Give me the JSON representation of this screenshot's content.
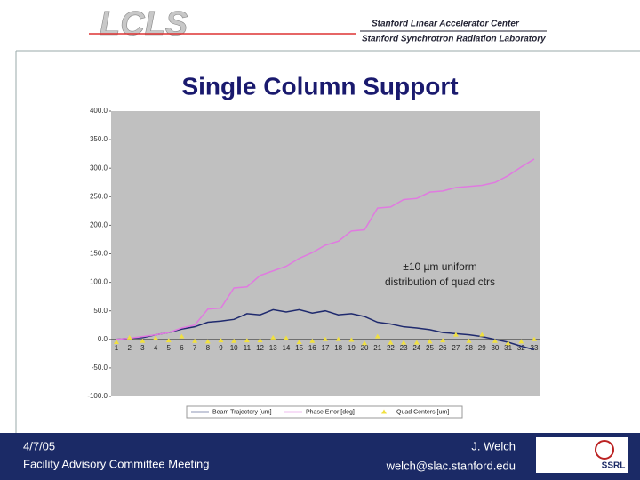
{
  "header": {
    "logo": "LCLS",
    "org1": "Stanford Linear Accelerator Center",
    "org2": "Stanford Synchrotron Radiation Laboratory"
  },
  "chart_data": {
    "type": "line",
    "title": "Single Column Support",
    "categories": [
      "1",
      "2",
      "3",
      "4",
      "5",
      "6",
      "7",
      "8",
      "9",
      "10",
      "11",
      "12",
      "13",
      "14",
      "15",
      "16",
      "17",
      "18",
      "19",
      "20",
      "21",
      "22",
      "23",
      "24",
      "25",
      "26",
      "27",
      "28",
      "29",
      "30",
      "31",
      "32",
      "33"
    ],
    "series": [
      {
        "name": "Beam Trajectory [um]",
        "color": "#1f2a6e",
        "marker": "none",
        "values": [
          0,
          2,
          3,
          8,
          12,
          18,
          22,
          30,
          32,
          35,
          45,
          43,
          52,
          48,
          52,
          46,
          50,
          43,
          45,
          40,
          30,
          27,
          22,
          20,
          17,
          12,
          10,
          8,
          5,
          0,
          -5,
          -12,
          -18
        ]
      },
      {
        "name": "Phase Error [deg]",
        "color": "#e07ae0",
        "marker": "none",
        "values": [
          0,
          2,
          5,
          8,
          12,
          20,
          25,
          53,
          55,
          90,
          92,
          112,
          120,
          128,
          142,
          152,
          165,
          172,
          190,
          192,
          230,
          232,
          245,
          247,
          258,
          260,
          266,
          268,
          270,
          275,
          287,
          302,
          316
        ]
      },
      {
        "name": "Quad Centers [um]",
        "color": "#f0e040",
        "marker": "triangle",
        "values": [
          -5,
          3,
          -3,
          2,
          -2,
          5,
          -3,
          -4,
          -2,
          -3,
          -2,
          -2,
          3,
          2,
          -5,
          -3,
          0,
          0,
          -1,
          -7,
          5,
          -6,
          -6,
          -6,
          -4,
          -2,
          8,
          -3,
          8,
          -3,
          -7,
          -4,
          0
        ]
      }
    ],
    "ylim": [
      -100,
      400
    ],
    "yticks": [
      {
        "value": -100,
        "label": "-100.0"
      },
      {
        "value": -50,
        "label": "-50.0"
      },
      {
        "value": 0,
        "label": "0.0"
      },
      {
        "value": 50,
        "label": "50.0"
      },
      {
        "value": 100,
        "label": "100.0"
      },
      {
        "value": 150,
        "label": "150.0"
      },
      {
        "value": 200,
        "label": "200.0"
      },
      {
        "value": 250,
        "label": "250.0"
      },
      {
        "value": 300,
        "label": "300.0"
      },
      {
        "value": 350,
        "label": "350.0"
      },
      {
        "value": 400,
        "label": "400.0"
      }
    ],
    "annotation": [
      "±10 µm uniform",
      "distribution of quad ctrs"
    ],
    "grid": false,
    "legend": "bottom"
  },
  "footer": {
    "date": "4/7/05",
    "meeting": "Facility Advisory Committee Meeting",
    "author": "J. Welch",
    "email": "welch@slac.stanford.edu",
    "logo": "SSRL"
  }
}
